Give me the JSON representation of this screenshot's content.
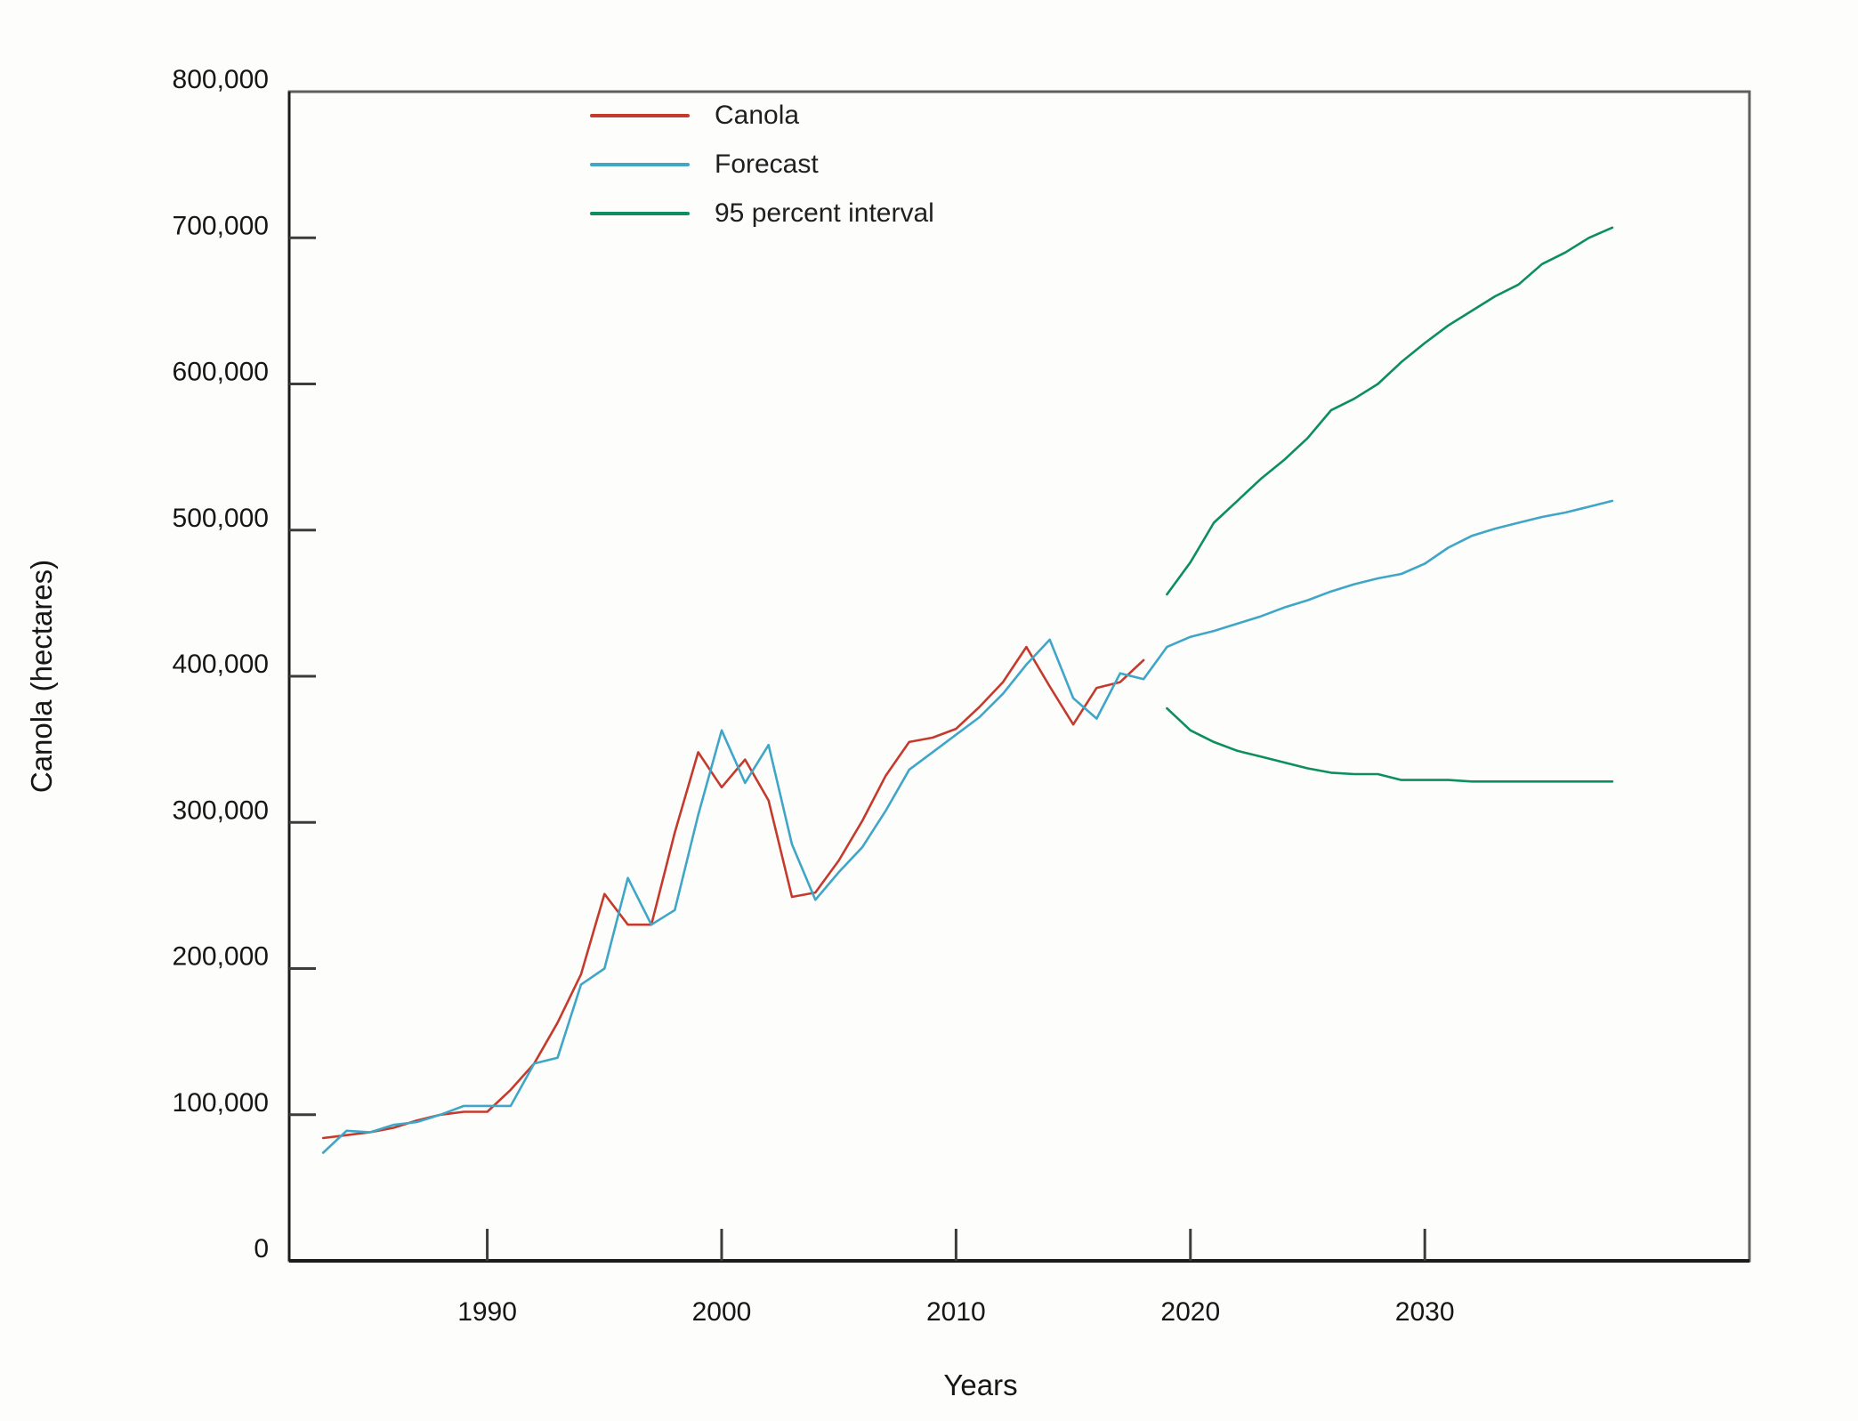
{
  "figure": {
    "y_axis_title": "Canola (hectares)",
    "x_axis_title": "Years"
  },
  "legend": [
    {
      "label": "Canola",
      "color": "#c43a2d"
    },
    {
      "label": "Forecast",
      "color": "#3fa6c8"
    },
    {
      "label": "95 percent interval",
      "color": "#0c8f5c"
    }
  ],
  "chart_data": {
    "type": "line",
    "title": "",
    "xlabel": "Years",
    "ylabel": "Canola (hectares)",
    "xlim": [
      1981.55,
      2043.85
    ],
    "ylim": [
      0,
      800000
    ],
    "grid": false,
    "legend_position": "top-left-inside",
    "x_ticks": [
      {
        "value": 1990,
        "label": "1990"
      },
      {
        "value": 2000,
        "label": "2000"
      },
      {
        "value": 2010,
        "label": "2010"
      },
      {
        "value": 2020,
        "label": "2020"
      },
      {
        "value": 2030,
        "label": "2030"
      }
    ],
    "y_ticks": [
      {
        "value": 0,
        "label": "0"
      },
      {
        "value": 100000,
        "label": "100,000"
      },
      {
        "value": 200000,
        "label": "200,000"
      },
      {
        "value": 300000,
        "label": "300,000"
      },
      {
        "value": 400000,
        "label": "400,000"
      },
      {
        "value": 500000,
        "label": "500,000"
      },
      {
        "value": 600000,
        "label": "600,000"
      },
      {
        "value": 700000,
        "label": "700,000"
      },
      {
        "value": 800000,
        "label": "800,000"
      }
    ],
    "series": [
      {
        "name": "Canola",
        "color": "#c43a2d",
        "data_name": "canola-line",
        "segments": [
          {
            "start_year": 1983,
            "values": [
              84000,
              86000,
              88000,
              91000,
              96000,
              100000,
              102000,
              102000,
              117000,
              135000,
              163000,
              196000,
              251000,
              230000,
              230000,
              293000,
              348000,
              324000,
              343000,
              315000,
              249000,
              252000,
              274000,
              301000,
              332000,
              355000,
              358000,
              364000,
              379000,
              396000,
              420000,
              393000,
              367000,
              392000,
              396000,
              411000
            ]
          }
        ]
      },
      {
        "name": "Forecast",
        "color": "#3fa6c8",
        "data_name": "forecast-line",
        "segments": [
          {
            "start_year": 1983,
            "values": [
              74000,
              89000,
              88000,
              93000,
              95000,
              100000,
              106000,
              106000,
              106000,
              135000,
              139000,
              189000,
              200000,
              262000,
              230000,
              240000,
              305000,
              363000,
              327000,
              353000,
              285000,
              247000,
              266000,
              283000,
              308000,
              336000,
              348000,
              360000,
              372000,
              388000,
              408000,
              425000,
              385000,
              371000,
              402000,
              398000,
              420000,
              427000,
              431000,
              436000,
              441000,
              447000,
              452000,
              458000,
              463000,
              467000,
              470000,
              477000,
              488000,
              496000,
              501000,
              505000,
              509000,
              512000,
              516000,
              520000
            ]
          }
        ]
      },
      {
        "name": "95 percent interval",
        "color": "#0c8f5c",
        "data_name": "interval-line",
        "segments": [
          {
            "start_year": 2019,
            "values": [
              456000,
              478000,
              505000,
              520000,
              535000,
              548000,
              563000,
              582000,
              590000,
              600000,
              615000,
              628000,
              640000,
              650000,
              660000,
              668000,
              682000,
              690000,
              700000,
              707000
            ]
          },
          {
            "start_year": 2019,
            "values": [
              378000,
              363000,
              355000,
              349000,
              345000,
              341000,
              337000,
              334000,
              333000,
              333000,
              329000,
              329000,
              329000,
              328000,
              328000,
              328000,
              328000,
              328000,
              328000,
              328000
            ]
          }
        ]
      }
    ]
  }
}
